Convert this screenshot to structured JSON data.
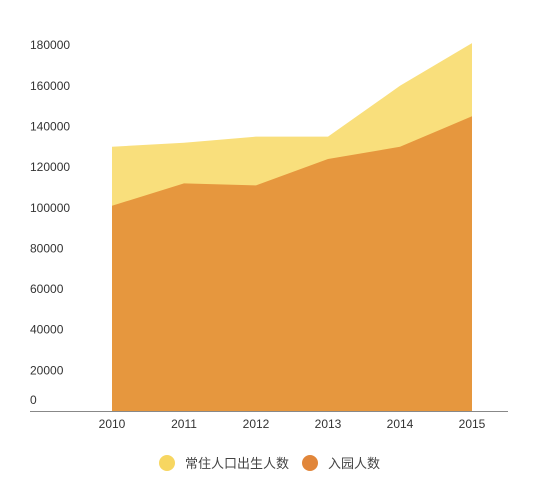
{
  "chart_data": {
    "type": "area",
    "x": [
      "2010",
      "2011",
      "2012",
      "2013",
      "2014",
      "2015"
    ],
    "series": [
      {
        "name": "常住人口出生人数",
        "values": [
          130000,
          132000,
          135000,
          135000,
          160000,
          181000
        ],
        "color": "#f9df7c"
      },
      {
        "name": "入园人数",
        "values": [
          101000,
          112000,
          111000,
          124000,
          130000,
          145000
        ],
        "color": "#e6973e"
      }
    ],
    "stacked": false,
    "yticks": [
      0,
      20000,
      40000,
      60000,
      80000,
      100000,
      120000,
      140000,
      160000,
      180000
    ],
    "ytick_labels": [
      "0",
      "20000",
      "40000",
      "60000",
      "80000",
      "100000",
      "120000",
      "140000",
      "160000",
      "180000"
    ],
    "ylim": [
      0,
      185000
    ],
    "grid": false,
    "legend_position": "bottom",
    "legend_marker_colors": [
      "#f7d661",
      "#e1863a"
    ],
    "axis_color": "#888888",
    "title": "",
    "xlabel": "",
    "ylabel": ""
  }
}
